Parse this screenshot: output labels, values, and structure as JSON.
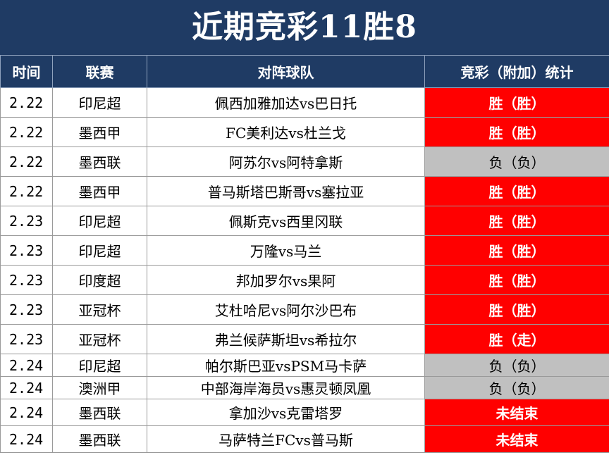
{
  "title": "近期竞彩11胜8",
  "headers": {
    "time": "时间",
    "league": "联赛",
    "match": "对阵球队",
    "stat": "竞彩（附加）统计"
  },
  "colors": {
    "header_bg": "#1f3b64",
    "win_bg": "#ff0000",
    "lose_bg": "#c0c0c0"
  },
  "rows": [
    {
      "time": "2.22",
      "league": "印尼超",
      "match": "佩西加雅加达vs巴日托",
      "result": "胜（胜）",
      "status": "win"
    },
    {
      "time": "2.22",
      "league": "墨西甲",
      "match": "FC美利达vs杜兰戈",
      "result": "胜（胜）",
      "status": "win"
    },
    {
      "time": "2.22",
      "league": "墨西联",
      "match": "阿苏尔vs阿特拿斯",
      "result": "负（负）",
      "status": "lose"
    },
    {
      "time": "2.22",
      "league": "墨西甲",
      "match": "普马斯塔巴斯哥vs塞拉亚",
      "result": "胜（胜）",
      "status": "win"
    },
    {
      "time": "2.23",
      "league": "印尼超",
      "match": "佩斯克vs西里冈联",
      "result": "胜（胜）",
      "status": "win"
    },
    {
      "time": "2.23",
      "league": "印尼超",
      "match": "万隆vs马兰",
      "result": "胜（胜）",
      "status": "win"
    },
    {
      "time": "2.23",
      "league": "印度超",
      "match": "邦加罗尔vs果阿",
      "result": "胜（胜）",
      "status": "win"
    },
    {
      "time": "2.23",
      "league": "亚冠杯",
      "match": "艾杜哈尼vs阿尔沙巴布",
      "result": "胜（胜）",
      "status": "win"
    },
    {
      "time": "2.23",
      "league": "亚冠杯",
      "match": "弗兰候萨斯坦vs希拉尔",
      "result": "胜（走）",
      "status": "win"
    },
    {
      "time": "2.24",
      "league": "印尼超",
      "match": "帕尔斯巴亚vsPSM马卡萨",
      "result": "负（负）",
      "status": "lose"
    },
    {
      "time": "2.24",
      "league": "澳洲甲",
      "match": "中部海岸海员vs惠灵顿凤凰",
      "result": "负（负）",
      "status": "lose"
    },
    {
      "time": "2.24",
      "league": "墨西联",
      "match": "拿加沙vs克雷塔罗",
      "result": "未结束",
      "status": "pending"
    },
    {
      "time": "2.24",
      "league": "墨西联",
      "match": "马萨特兰FCvs普马斯",
      "result": "未结束",
      "status": "pending"
    }
  ]
}
